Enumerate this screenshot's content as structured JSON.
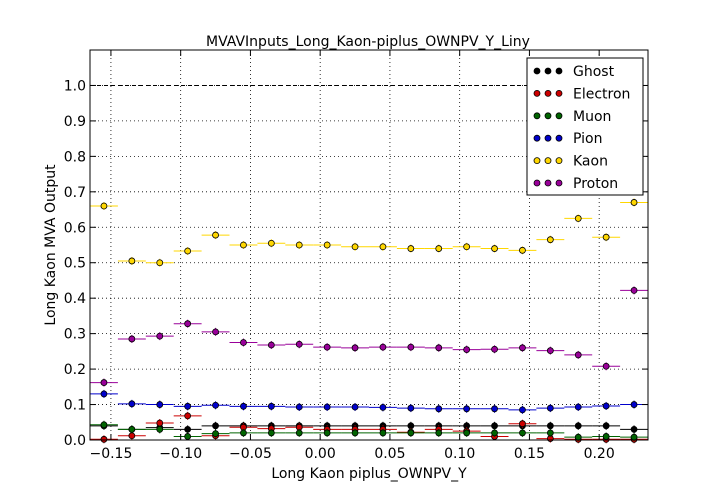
{
  "chart_data": {
    "type": "scatter",
    "title": "MVAVInputs_Long_Kaon-piplus_OWNPV_Y_Liny",
    "xlabel": "Long Kaon piplus_OWNPV_Y",
    "ylabel": "Long Kaon MVA Output",
    "xlim": [
      -0.165,
      0.235
    ],
    "ylim": [
      0.0,
      1.1
    ],
    "xticks": [
      -0.15,
      -0.1,
      -0.05,
      0.0,
      0.05,
      0.1,
      0.15,
      0.2
    ],
    "xtick_labels": [
      "−0.15",
      "−0.10",
      "−0.05",
      "0.00",
      "0.05",
      "0.10",
      "0.15",
      "0.20"
    ],
    "yticks": [
      0.0,
      0.1,
      0.2,
      0.3,
      0.4,
      0.5,
      0.6,
      0.7,
      0.8,
      0.9,
      1.0
    ],
    "ytick_labels": [
      "0.0",
      "0.1",
      "0.2",
      "0.3",
      "0.4",
      "0.5",
      "0.6",
      "0.7",
      "0.8",
      "0.9",
      "1.0"
    ],
    "grid": true,
    "reference_line": 1.0,
    "legend_position": "top-right",
    "x": [
      -0.155,
      -0.135,
      -0.115,
      -0.095,
      -0.075,
      -0.055,
      -0.035,
      -0.015,
      0.005,
      0.025,
      0.045,
      0.065,
      0.085,
      0.105,
      0.125,
      0.145,
      0.165,
      0.185,
      0.205,
      0.225
    ],
    "x_halfwidth": 0.01,
    "series": [
      {
        "name": "Ghost",
        "color": "#000000",
        "values": [
          0.04,
          0.03,
          0.035,
          0.03,
          0.04,
          0.04,
          0.04,
          0.04,
          0.04,
          0.04,
          0.04,
          0.04,
          0.04,
          0.04,
          0.04,
          0.04,
          0.04,
          0.04,
          0.04,
          0.03
        ]
      },
      {
        "name": "Electron",
        "color": "#cc0000",
        "values": [
          0.002,
          0.012,
          0.048,
          0.068,
          0.012,
          0.036,
          0.032,
          0.036,
          0.03,
          0.03,
          0.03,
          0.022,
          0.03,
          0.025,
          0.01,
          0.046,
          0.004,
          0.002,
          0.002,
          0.002
        ]
      },
      {
        "name": "Muon",
        "color": "#006400",
        "values": [
          0.043,
          0.03,
          0.03,
          0.01,
          0.018,
          0.02,
          0.02,
          0.02,
          0.02,
          0.02,
          0.02,
          0.02,
          0.02,
          0.02,
          0.02,
          0.02,
          0.02,
          0.008,
          0.01,
          0.008
        ]
      },
      {
        "name": "Pion",
        "color": "#0000cc",
        "values": [
          0.13,
          0.102,
          0.1,
          0.095,
          0.098,
          0.095,
          0.095,
          0.093,
          0.093,
          0.093,
          0.092,
          0.09,
          0.088,
          0.088,
          0.088,
          0.085,
          0.09,
          0.093,
          0.096,
          0.1
        ]
      },
      {
        "name": "Kaon",
        "color": "#ffd700",
        "values": [
          0.66,
          0.505,
          0.5,
          0.533,
          0.578,
          0.55,
          0.555,
          0.55,
          0.55,
          0.545,
          0.545,
          0.54,
          0.54,
          0.545,
          0.54,
          0.535,
          0.565,
          0.625,
          0.572,
          0.67
        ]
      },
      {
        "name": "Proton",
        "color": "#990099",
        "values": [
          0.162,
          0.285,
          0.293,
          0.328,
          0.305,
          0.275,
          0.268,
          0.27,
          0.262,
          0.26,
          0.262,
          0.262,
          0.26,
          0.255,
          0.256,
          0.26,
          0.252,
          0.24,
          0.208,
          0.422
        ]
      }
    ]
  }
}
